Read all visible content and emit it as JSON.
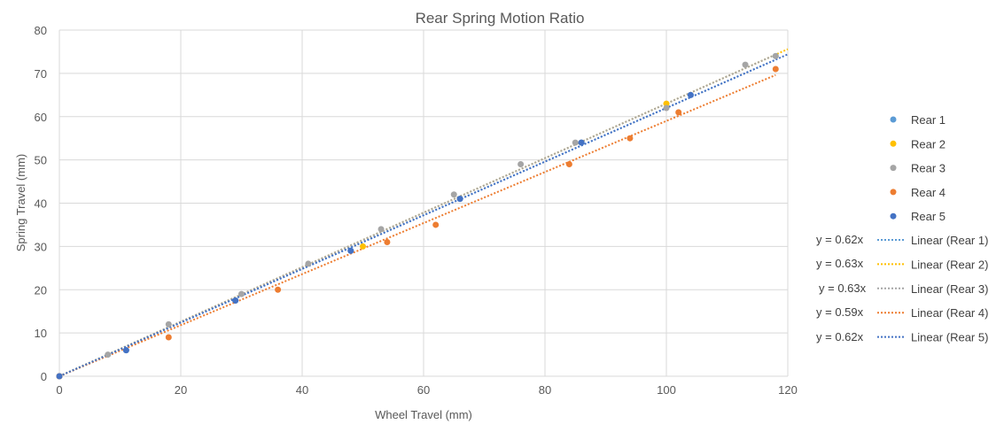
{
  "chart_data": {
    "type": "scatter",
    "title": "Rear Spring Motion Ratio",
    "xlabel": "Wheel Travel (mm)",
    "ylabel": "Spring Travel (mm)",
    "xlim": [
      0,
      120
    ],
    "ylim": [
      0,
      80
    ],
    "x_ticks": [
      0,
      20,
      40,
      60,
      80,
      100,
      120
    ],
    "y_ticks": [
      0,
      10,
      20,
      30,
      40,
      50,
      60,
      70,
      80
    ],
    "grid": true,
    "legend_position": "right",
    "series": [
      {
        "name": "Rear 1",
        "color": "#5B9BD5",
        "points": [
          [
            0,
            0
          ],
          [
            11,
            6
          ],
          [
            29,
            17.5
          ],
          [
            48,
            29
          ],
          [
            66,
            41
          ],
          [
            86,
            54
          ],
          [
            104,
            65
          ],
          [
            118,
            74
          ]
        ]
      },
      {
        "name": "Rear 2",
        "color": "#FFC000",
        "points": [
          [
            0,
            0
          ],
          [
            50,
            30
          ],
          [
            100,
            63
          ]
        ]
      },
      {
        "name": "Rear 3",
        "color": "#A5A5A5",
        "points": [
          [
            0,
            0
          ],
          [
            8,
            5
          ],
          [
            18,
            12
          ],
          [
            30,
            19
          ],
          [
            41,
            26
          ],
          [
            53,
            34
          ],
          [
            65,
            42
          ],
          [
            76,
            49
          ],
          [
            85,
            54
          ],
          [
            100,
            62
          ],
          [
            113,
            72
          ],
          [
            118,
            74
          ]
        ]
      },
      {
        "name": "Rear 4",
        "color": "#ED7D31",
        "points": [
          [
            0,
            0
          ],
          [
            18,
            9
          ],
          [
            36,
            20
          ],
          [
            54,
            31
          ],
          [
            62,
            35
          ],
          [
            84,
            49
          ],
          [
            94,
            55
          ],
          [
            102,
            61
          ],
          [
            118,
            71
          ]
        ]
      },
      {
        "name": "Rear 5",
        "color": "#4472C4",
        "points": [
          [
            0,
            0
          ],
          [
            11,
            6
          ],
          [
            29,
            17.5
          ],
          [
            48,
            29
          ],
          [
            66,
            41
          ],
          [
            86,
            54
          ],
          [
            104,
            65
          ]
        ]
      }
    ],
    "trendlines": [
      {
        "name": "Linear (Rear 1)",
        "slope": 0.62,
        "equation": "y = 0.62x",
        "color": "#5B9BD5",
        "x_end": 118
      },
      {
        "name": "Linear (Rear 2)",
        "slope": 0.63,
        "equation": "y = 0.63x",
        "color": "#FFC000",
        "x_end": 120
      },
      {
        "name": "Linear (Rear 3)",
        "slope": 0.63,
        "equation": "y = 0.63x",
        "color": "#A5A5A5",
        "x_end": 118
      },
      {
        "name": "Linear (Rear 4)",
        "slope": 0.59,
        "equation": "y = 0.59x",
        "color": "#ED7D31",
        "x_end": 118
      },
      {
        "name": "Linear (Rear 5)",
        "slope": 0.62,
        "equation": "y = 0.62x",
        "color": "#4472C4",
        "x_end": 120
      }
    ]
  }
}
